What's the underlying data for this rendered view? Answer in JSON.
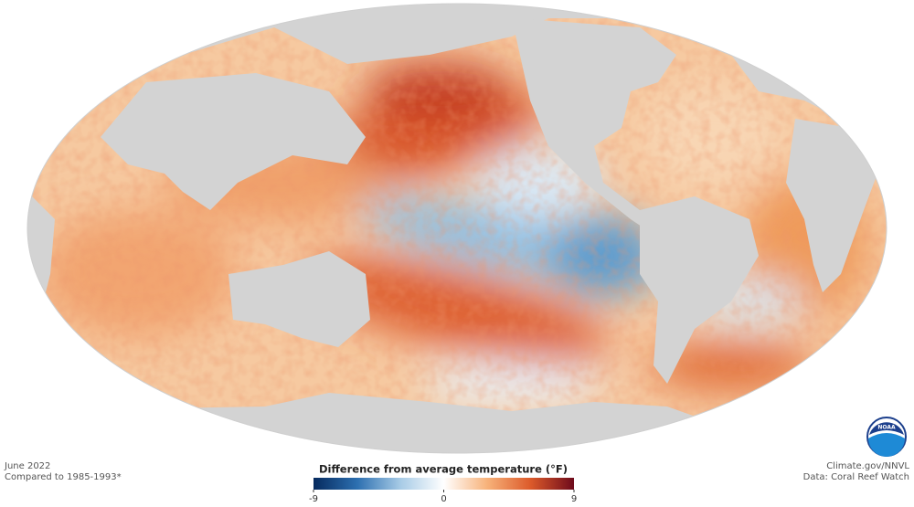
{
  "map": {
    "date": "June 2022",
    "baseline": "Compared to 1985-1993*",
    "credit": "Climate.gov/NNVL",
    "source": "Data: Coral Reef Watch",
    "logo": "NOAA"
  },
  "legend": {
    "title": "Difference from average temperature (°F)",
    "range": [
      -9,
      9
    ],
    "ticks": [
      -9,
      0,
      9
    ],
    "colors": [
      "#062a5e",
      "#2c6fb0",
      "#a7cbe6",
      "#ffffff",
      "#f7b27a",
      "#dc5a2a",
      "#6e0a1b"
    ]
  }
}
